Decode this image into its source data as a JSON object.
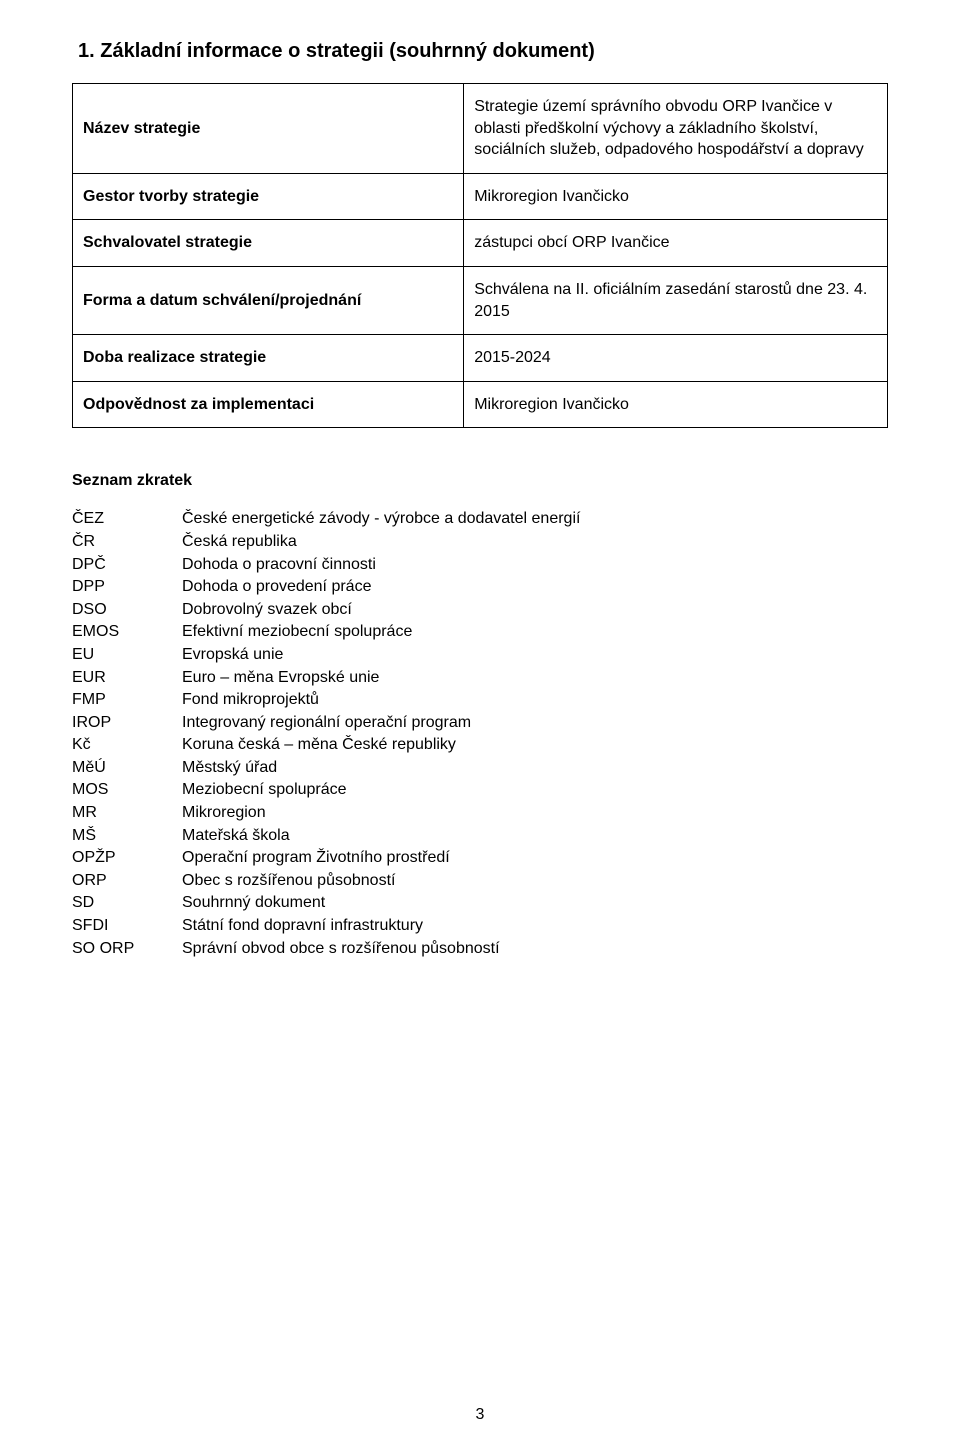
{
  "heading": "1. Základní informace o strategii (souhrnný dokument)",
  "info_table": {
    "rows": [
      {
        "label": "Název strategie",
        "value": "Strategie území správního obvodu ORP Ivančice v oblasti předškolní výchovy a základního školství, sociálních služeb, odpadového hospodářství a dopravy"
      },
      {
        "label": "Gestor tvorby strategie",
        "value": "Mikroregion Ivančicko"
      },
      {
        "label": "Schvalovatel strategie",
        "value": "zástupci obcí ORP Ivančice"
      },
      {
        "label": "Forma a datum schválení/projednání",
        "value": "Schválena na II. oficiálním zasedání starostů dne 23. 4. 2015"
      },
      {
        "label": "Doba realizace strategie",
        "value": "2015-2024"
      },
      {
        "label": "Odpovědnost za implementaci",
        "value": "Mikroregion Ivančicko"
      }
    ]
  },
  "abbr_title": "Seznam zkratek",
  "abbreviations": [
    {
      "k": "ČEZ",
      "v": "České energetické závody - výrobce a dodavatel energií"
    },
    {
      "k": "ČR",
      "v": "Česká republika"
    },
    {
      "k": "DPČ",
      "v": "Dohoda o pracovní činnosti"
    },
    {
      "k": "DPP",
      "v": "Dohoda o provedení práce"
    },
    {
      "k": "DSO",
      "v": "Dobrovolný svazek obcí"
    },
    {
      "k": "EMOS",
      "v": "Efektivní meziobecní spolupráce"
    },
    {
      "k": "EU",
      "v": "Evropská unie"
    },
    {
      "k": "EUR",
      "v": "Euro – měna Evropské unie"
    },
    {
      "k": "FMP",
      "v": "Fond mikroprojektů"
    },
    {
      "k": "IROP",
      "v": "Integrovaný regionální operační program"
    },
    {
      "k": "Kč",
      "v": "Koruna česká – měna České republiky"
    },
    {
      "k": "MěÚ",
      "v": "Městský úřad"
    },
    {
      "k": "MOS",
      "v": "Meziobecní spolupráce"
    },
    {
      "k": "MR",
      "v": "Mikroregion"
    },
    {
      "k": "MŠ",
      "v": "Mateřská škola"
    },
    {
      "k": "OPŽP",
      "v": "Operační program Životního prostředí"
    },
    {
      "k": "ORP",
      "v": "Obec s rozšířenou působností"
    },
    {
      "k": "SD",
      "v": "Souhrnný dokument"
    },
    {
      "k": "SFDI",
      "v": "Státní fond dopravní infrastruktury"
    },
    {
      "k": "SO ORP",
      "v": "Správní obvod obce s rozšířenou působností"
    }
  ],
  "page_number": "3"
}
